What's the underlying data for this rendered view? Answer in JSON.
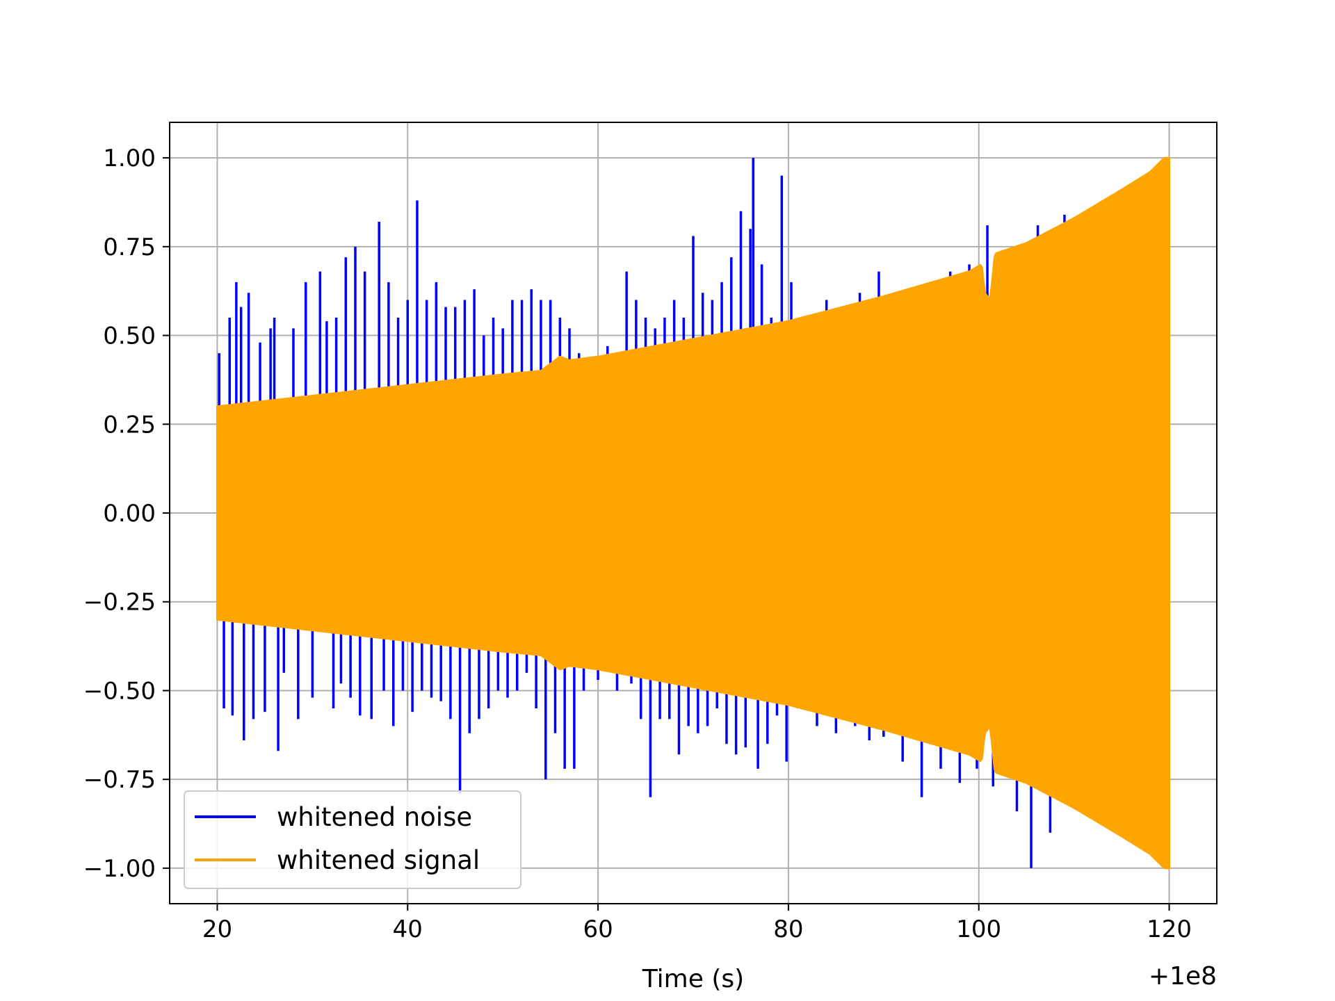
{
  "chart_data": {
    "type": "line",
    "title": "",
    "xlabel": "Time (s)",
    "ylabel": "",
    "x_offset_label": "+1e8",
    "xlim": [
      15,
      125
    ],
    "ylim": [
      -1.1,
      1.1
    ],
    "x_ticks": [
      20,
      40,
      60,
      80,
      100,
      120
    ],
    "x_tick_labels": [
      "20",
      "40",
      "60",
      "80",
      "100",
      "120"
    ],
    "y_ticks": [
      -1.0,
      -0.75,
      -0.5,
      -0.25,
      0.0,
      0.25,
      0.5,
      0.75,
      1.0
    ],
    "y_tick_labels": [
      "−1.00",
      "−0.75",
      "−0.50",
      "−0.25",
      "0.00",
      "0.25",
      "0.50",
      "0.75",
      "1.00"
    ],
    "grid": true,
    "legend_position": "lower-left",
    "x_range": [
      20,
      120
    ],
    "series": [
      {
        "name": "whitened noise",
        "color": "#0000ff",
        "envelope_peaks": [
          {
            "x": 20.2,
            "y": 0.45
          },
          {
            "x": 20.7,
            "y": -0.55
          },
          {
            "x": 21.3,
            "y": 0.55
          },
          {
            "x": 21.6,
            "y": -0.57
          },
          {
            "x": 22.0,
            "y": 0.65
          },
          {
            "x": 22.5,
            "y": 0.58
          },
          {
            "x": 22.8,
            "y": -0.64
          },
          {
            "x": 23.3,
            "y": 0.62
          },
          {
            "x": 23.8,
            "y": -0.58
          },
          {
            "x": 24.5,
            "y": 0.48
          },
          {
            "x": 25.0,
            "y": -0.56
          },
          {
            "x": 25.6,
            "y": 0.52
          },
          {
            "x": 26.0,
            "y": 0.55
          },
          {
            "x": 26.4,
            "y": -0.67
          },
          {
            "x": 27.0,
            "y": -0.45
          },
          {
            "x": 28.0,
            "y": 0.52
          },
          {
            "x": 28.5,
            "y": -0.58
          },
          {
            "x": 29.3,
            "y": 0.65
          },
          {
            "x": 30.0,
            "y": -0.52
          },
          {
            "x": 30.8,
            "y": 0.68
          },
          {
            "x": 31.5,
            "y": 0.54
          },
          {
            "x": 32.2,
            "y": -0.55
          },
          {
            "x": 32.5,
            "y": 0.55
          },
          {
            "x": 33.0,
            "y": -0.48
          },
          {
            "x": 33.5,
            "y": 0.72
          },
          {
            "x": 34.0,
            "y": -0.52
          },
          {
            "x": 34.5,
            "y": 0.75
          },
          {
            "x": 35.0,
            "y": -0.57
          },
          {
            "x": 35.5,
            "y": 0.68
          },
          {
            "x": 36.2,
            "y": -0.58
          },
          {
            "x": 37.0,
            "y": 0.82
          },
          {
            "x": 37.5,
            "y": -0.5
          },
          {
            "x": 38.0,
            "y": 0.65
          },
          {
            "x": 38.5,
            "y": -0.6
          },
          {
            "x": 39.0,
            "y": 0.55
          },
          {
            "x": 39.5,
            "y": -0.5
          },
          {
            "x": 40.0,
            "y": 0.6
          },
          {
            "x": 40.5,
            "y": -0.56
          },
          {
            "x": 41.0,
            "y": 0.88
          },
          {
            "x": 41.5,
            "y": -0.5
          },
          {
            "x": 42.0,
            "y": 0.6
          },
          {
            "x": 42.5,
            "y": -0.52
          },
          {
            "x": 43.0,
            "y": 0.65
          },
          {
            "x": 43.5,
            "y": -0.53
          },
          {
            "x": 44.0,
            "y": 0.58
          },
          {
            "x": 44.5,
            "y": -0.58
          },
          {
            "x": 45.0,
            "y": 0.58
          },
          {
            "x": 45.5,
            "y": -0.79
          },
          {
            "x": 46.0,
            "y": 0.6
          },
          {
            "x": 46.5,
            "y": -0.62
          },
          {
            "x": 47.0,
            "y": 0.63
          },
          {
            "x": 47.5,
            "y": -0.58
          },
          {
            "x": 48.0,
            "y": 0.5
          },
          {
            "x": 48.5,
            "y": -0.55
          },
          {
            "x": 49.0,
            "y": 0.55
          },
          {
            "x": 49.5,
            "y": -0.5
          },
          {
            "x": 50.0,
            "y": 0.52
          },
          {
            "x": 50.5,
            "y": -0.52
          },
          {
            "x": 51.0,
            "y": 0.6
          },
          {
            "x": 51.5,
            "y": -0.5
          },
          {
            "x": 52.0,
            "y": 0.6
          },
          {
            "x": 52.5,
            "y": -0.45
          },
          {
            "x": 53.0,
            "y": 0.63
          },
          {
            "x": 53.5,
            "y": -0.55
          },
          {
            "x": 54.0,
            "y": 0.6
          },
          {
            "x": 54.5,
            "y": -0.75
          },
          {
            "x": 55.0,
            "y": 0.6
          },
          {
            "x": 55.5,
            "y": -0.62
          },
          {
            "x": 56.0,
            "y": 0.55
          },
          {
            "x": 56.5,
            "y": -0.72
          },
          {
            "x": 57.0,
            "y": 0.52
          },
          {
            "x": 57.5,
            "y": -0.72
          },
          {
            "x": 58.0,
            "y": 0.45
          },
          {
            "x": 58.5,
            "y": -0.5
          },
          {
            "x": 59.0,
            "y": 0.4
          },
          {
            "x": 60.0,
            "y": -0.47
          },
          {
            "x": 61.0,
            "y": 0.47
          },
          {
            "x": 62.0,
            "y": -0.5
          },
          {
            "x": 63.0,
            "y": 0.68
          },
          {
            "x": 63.5,
            "y": -0.48
          },
          {
            "x": 64.0,
            "y": 0.6
          },
          {
            "x": 64.5,
            "y": -0.58
          },
          {
            "x": 65.0,
            "y": 0.55
          },
          {
            "x": 65.5,
            "y": -0.8
          },
          {
            "x": 66.0,
            "y": 0.52
          },
          {
            "x": 66.5,
            "y": -0.58
          },
          {
            "x": 67.0,
            "y": 0.55
          },
          {
            "x": 67.5,
            "y": -0.58
          },
          {
            "x": 68.0,
            "y": 0.6
          },
          {
            "x": 68.5,
            "y": -0.68
          },
          {
            "x": 69.0,
            "y": 0.55
          },
          {
            "x": 69.5,
            "y": -0.6
          },
          {
            "x": 70.0,
            "y": 0.78
          },
          {
            "x": 70.5,
            "y": -0.62
          },
          {
            "x": 71.0,
            "y": 0.62
          },
          {
            "x": 71.5,
            "y": -0.6
          },
          {
            "x": 72.0,
            "y": 0.6
          },
          {
            "x": 72.5,
            "y": -0.55
          },
          {
            "x": 73.0,
            "y": 0.65
          },
          {
            "x": 73.5,
            "y": -0.65
          },
          {
            "x": 74.0,
            "y": 0.72
          },
          {
            "x": 74.5,
            "y": -0.68
          },
          {
            "x": 75.0,
            "y": 0.85
          },
          {
            "x": 75.5,
            "y": -0.66
          },
          {
            "x": 76.0,
            "y": 0.8
          },
          {
            "x": 76.3,
            "y": 1.0
          },
          {
            "x": 76.8,
            "y": -0.72
          },
          {
            "x": 77.2,
            "y": 0.7
          },
          {
            "x": 77.8,
            "y": -0.65
          },
          {
            "x": 78.2,
            "y": 0.55
          },
          {
            "x": 78.8,
            "y": -0.57
          },
          {
            "x": 79.3,
            "y": 0.95
          },
          {
            "x": 79.8,
            "y": -0.7
          },
          {
            "x": 80.3,
            "y": 0.65
          },
          {
            "x": 81.0,
            "y": -0.55
          },
          {
            "x": 82.0,
            "y": 0.5
          },
          {
            "x": 83.0,
            "y": -0.6
          },
          {
            "x": 84.0,
            "y": 0.6
          },
          {
            "x": 85.0,
            "y": -0.62
          },
          {
            "x": 86.0,
            "y": 0.54
          },
          {
            "x": 87.0,
            "y": -0.6
          },
          {
            "x": 87.5,
            "y": 0.62
          },
          {
            "x": 88.5,
            "y": -0.64
          },
          {
            "x": 89.5,
            "y": 0.68
          },
          {
            "x": 90.0,
            "y": -0.63
          },
          {
            "x": 91.0,
            "y": 0.56
          },
          {
            "x": 92.0,
            "y": -0.7
          },
          {
            "x": 93.0,
            "y": 0.62
          },
          {
            "x": 94.0,
            "y": -0.8
          },
          {
            "x": 95.0,
            "y": 0.64
          },
          {
            "x": 96.0,
            "y": -0.72
          },
          {
            "x": 97.0,
            "y": 0.68
          },
          {
            "x": 98.0,
            "y": -0.76
          },
          {
            "x": 99.0,
            "y": 0.7
          },
          {
            "x": 99.8,
            "y": -0.72
          },
          {
            "x": 100.9,
            "y": 0.81
          },
          {
            "x": 101.5,
            "y": -0.77
          },
          {
            "x": 102.5,
            "y": 0.74
          },
          {
            "x": 104.0,
            "y": -0.84
          },
          {
            "x": 105.5,
            "y": -1.0
          },
          {
            "x": 106.2,
            "y": 0.81
          },
          {
            "x": 107.5,
            "y": -0.9
          },
          {
            "x": 109.0,
            "y": 0.84
          }
        ]
      },
      {
        "name": "whitened signal",
        "color": "#ffa500",
        "amplitude_envelope": [
          {
            "x": 20,
            "y": 0.3
          },
          {
            "x": 30,
            "y": 0.33
          },
          {
            "x": 40,
            "y": 0.36
          },
          {
            "x": 50,
            "y": 0.39
          },
          {
            "x": 54,
            "y": 0.4
          },
          {
            "x": 55,
            "y": 0.42
          },
          {
            "x": 56,
            "y": 0.44
          },
          {
            "x": 57,
            "y": 0.43
          },
          {
            "x": 60,
            "y": 0.44
          },
          {
            "x": 70,
            "y": 0.49
          },
          {
            "x": 80,
            "y": 0.54
          },
          {
            "x": 90,
            "y": 0.61
          },
          {
            "x": 99,
            "y": 0.68
          },
          {
            "x": 100.3,
            "y": 0.7
          },
          {
            "x": 100.6,
            "y": 0.62
          },
          {
            "x": 101.2,
            "y": 0.6
          },
          {
            "x": 101.7,
            "y": 0.73
          },
          {
            "x": 105,
            "y": 0.76
          },
          {
            "x": 110,
            "y": 0.83
          },
          {
            "x": 115,
            "y": 0.91
          },
          {
            "x": 118,
            "y": 0.96
          },
          {
            "x": 119.5,
            "y": 1.0
          },
          {
            "x": 120,
            "y": 1.0
          }
        ]
      }
    ]
  }
}
